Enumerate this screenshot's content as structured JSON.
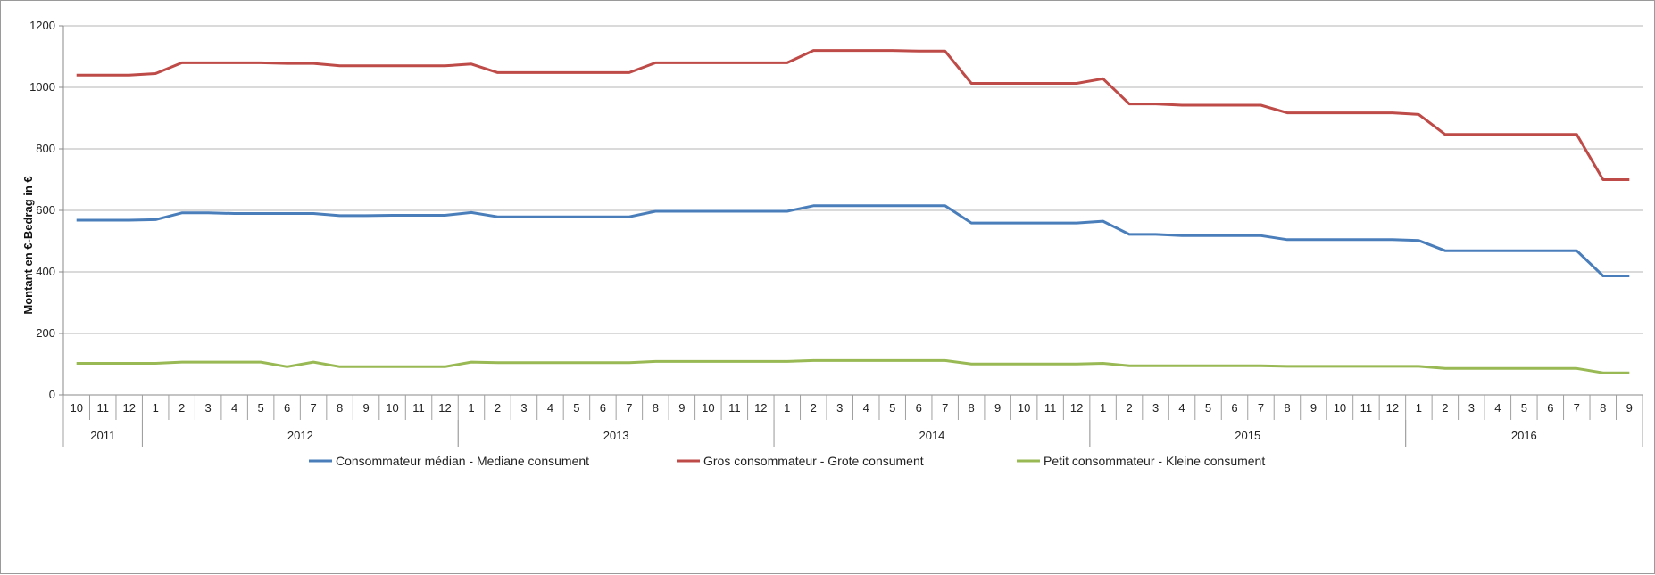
{
  "chart_data": {
    "type": "line",
    "title": "",
    "ylabel": "Montant en €-Bedrag in €",
    "xlabel": "",
    "ylim": [
      0,
      1200
    ],
    "yticks": [
      "0",
      "200",
      "400",
      "600",
      "800",
      "1000",
      "1200"
    ],
    "grid": true,
    "legend_position": "bottom",
    "months": [
      "10",
      "11",
      "12",
      "1",
      "2",
      "3",
      "4",
      "5",
      "6",
      "7",
      "8",
      "9",
      "10",
      "11",
      "12",
      "1",
      "2",
      "3",
      "4",
      "5",
      "6",
      "7",
      "8",
      "9",
      "10",
      "11",
      "12",
      "1",
      "2",
      "3",
      "4",
      "5",
      "6",
      "7",
      "8",
      "9",
      "10",
      "11",
      "12",
      "1",
      "2",
      "3",
      "4",
      "5",
      "6",
      "7",
      "8",
      "9",
      "10",
      "11",
      "12",
      "1",
      "2",
      "3",
      "4",
      "5",
      "6",
      "7",
      "8",
      "9"
    ],
    "years": [
      {
        "label": "2011",
        "start": 0,
        "count": 3
      },
      {
        "label": "2012",
        "start": 3,
        "count": 12
      },
      {
        "label": "2013",
        "start": 15,
        "count": 12
      },
      {
        "label": "2014",
        "start": 27,
        "count": 12
      },
      {
        "label": "2015",
        "start": 39,
        "count": 12
      },
      {
        "label": "2016",
        "start": 51,
        "count": 9
      }
    ],
    "series": [
      {
        "name": "Consommateur médian - Mediane consument",
        "color": "#4a7ebb",
        "values": [
          568,
          568,
          568,
          570,
          592,
          592,
          590,
          590,
          590,
          590,
          583,
          583,
          584,
          584,
          584,
          593,
          579,
          579,
          579,
          579,
          579,
          579,
          597,
          597,
          597,
          597,
          597,
          597,
          615,
          615,
          615,
          615,
          615,
          615,
          559,
          559,
          559,
          559,
          559,
          565,
          522,
          522,
          518,
          518,
          518,
          518,
          505,
          505,
          505,
          505,
          505,
          502,
          469,
          469,
          469,
          469,
          469,
          469,
          387,
          387
        ]
      },
      {
        "name": "Gros consommateur - Grote consument",
        "color": "#be4b48",
        "values": [
          1040,
          1040,
          1040,
          1045,
          1080,
          1080,
          1080,
          1080,
          1078,
          1078,
          1070,
          1070,
          1070,
          1070,
          1070,
          1076,
          1048,
          1048,
          1048,
          1048,
          1048,
          1048,
          1080,
          1080,
          1080,
          1080,
          1080,
          1080,
          1120,
          1120,
          1120,
          1120,
          1118,
          1118,
          1013,
          1013,
          1013,
          1013,
          1013,
          1028,
          946,
          946,
          942,
          942,
          942,
          942,
          917,
          917,
          917,
          917,
          917,
          912,
          847,
          847,
          847,
          847,
          847,
          847,
          700,
          700
        ]
      },
      {
        "name": "Petit consommateur - Kleine consument",
        "color": "#98b954",
        "values": [
          103,
          103,
          103,
          103,
          107,
          107,
          107,
          107,
          92,
          107,
          92,
          92,
          92,
          92,
          92,
          107,
          105,
          105,
          105,
          105,
          105,
          105,
          109,
          109,
          109,
          109,
          109,
          109,
          112,
          112,
          112,
          112,
          112,
          112,
          101,
          101,
          101,
          101,
          101,
          103,
          95,
          95,
          95,
          95,
          95,
          95,
          93,
          93,
          93,
          93,
          93,
          93,
          86,
          86,
          86,
          86,
          86,
          86,
          72,
          72
        ]
      }
    ]
  }
}
